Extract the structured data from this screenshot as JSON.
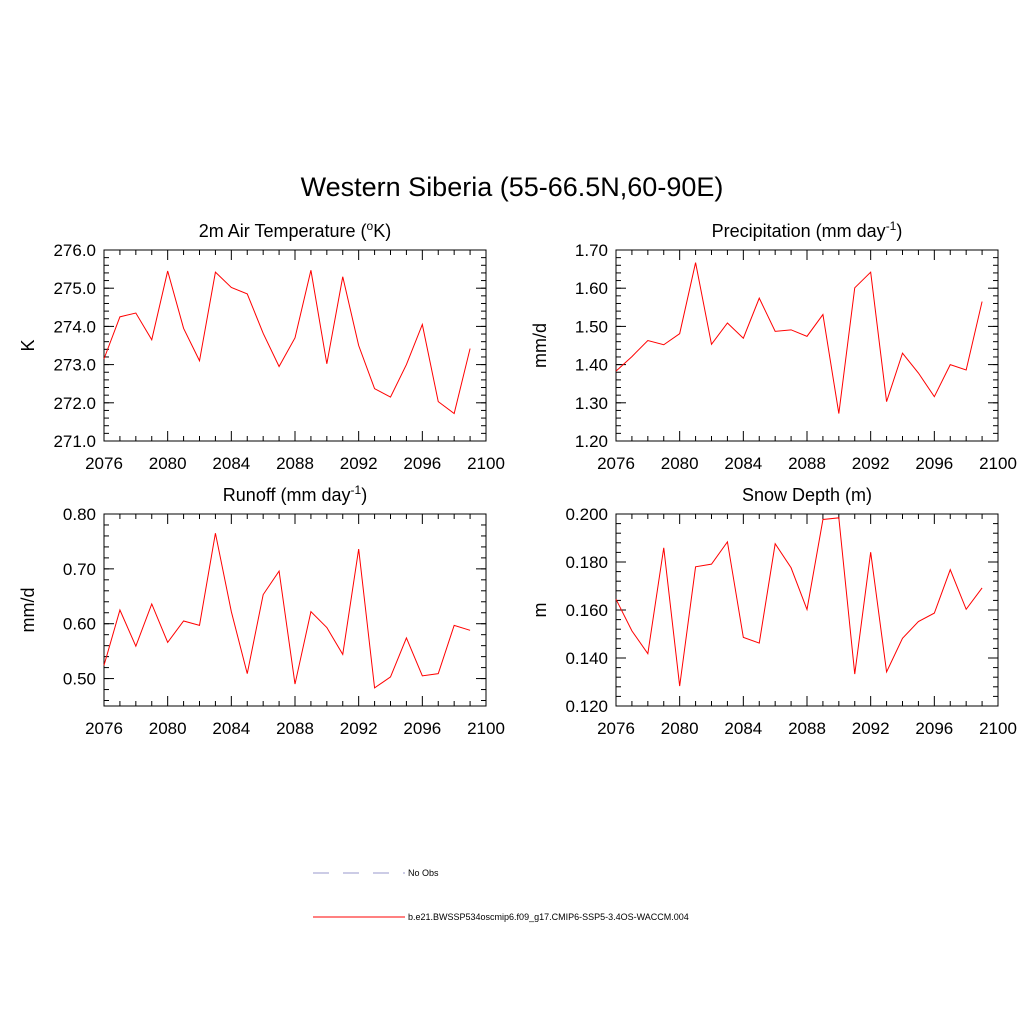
{
  "figure": {
    "title": "Western Siberia (55-66.5N,60-90E)"
  },
  "chart_data": [
    {
      "type": "line",
      "title": "2m Air Temperature (",
      "title_sup": "o",
      "title_end": "K)",
      "ylabel": "K",
      "xlim": [
        2076,
        2100
      ],
      "ylim": [
        271.0,
        276.0
      ],
      "xticks": [
        2076,
        2080,
        2084,
        2088,
        2092,
        2096,
        2100
      ],
      "yticks": [
        271.0,
        272.0,
        273.0,
        274.0,
        275.0,
        276.0
      ],
      "ytick_decimals": 1,
      "x": [
        2076,
        2077,
        2078,
        2079,
        2080,
        2081,
        2082,
        2083,
        2084,
        2085,
        2086,
        2087,
        2088,
        2089,
        2090,
        2091,
        2092,
        2093,
        2094,
        2095,
        2096,
        2097,
        2098,
        2099
      ],
      "series": [
        {
          "name": "b.e21.BWSSP534oscmip6.f09_g17.CMIP6-SSP5-3.4OS-WACCM.004",
          "values": [
            273.15,
            274.25,
            274.35,
            273.65,
            275.45,
            273.95,
            273.1,
            275.42,
            275.02,
            274.85,
            273.82,
            272.95,
            273.7,
            275.47,
            273.02,
            275.3,
            273.5,
            272.37,
            272.15,
            273.0,
            274.05,
            272.03,
            271.72,
            273.42
          ]
        }
      ]
    },
    {
      "type": "line",
      "title": "Precipitation (mm day",
      "title_sup": "-1",
      "title_end": ")",
      "ylabel": "mm/d",
      "xlim": [
        2076,
        2100
      ],
      "ylim": [
        1.2,
        1.7
      ],
      "xticks": [
        2076,
        2080,
        2084,
        2088,
        2092,
        2096,
        2100
      ],
      "yticks": [
        1.2,
        1.3,
        1.4,
        1.5,
        1.6,
        1.7
      ],
      "ytick_decimals": 2,
      "x": [
        2076,
        2077,
        2078,
        2079,
        2080,
        2081,
        2082,
        2083,
        2084,
        2085,
        2086,
        2087,
        2088,
        2089,
        2090,
        2091,
        2092,
        2093,
        2094,
        2095,
        2096,
        2097,
        2098,
        2099
      ],
      "series": [
        {
          "name": "b.e21.BWSSP534oscmip6.f09_g17.CMIP6-SSP5-3.4OS-WACCM.004",
          "values": [
            1.383,
            1.421,
            1.463,
            1.452,
            1.481,
            1.667,
            1.453,
            1.509,
            1.469,
            1.574,
            1.487,
            1.491,
            1.474,
            1.531,
            1.272,
            1.601,
            1.642,
            1.303,
            1.43,
            1.378,
            1.316,
            1.4,
            1.386,
            1.565
          ]
        }
      ]
    },
    {
      "type": "line",
      "title": "Runoff (mm day",
      "title_sup": "-1",
      "title_end": ")",
      "ylabel": "mm/d",
      "xlim": [
        2076,
        2100
      ],
      "ylim": [
        0.45,
        0.8
      ],
      "xticks": [
        2076,
        2080,
        2084,
        2088,
        2092,
        2096,
        2100
      ],
      "yticks": [
        0.5,
        0.6,
        0.7,
        0.8
      ],
      "ytick_decimals": 2,
      "x": [
        2076,
        2077,
        2078,
        2079,
        2080,
        2081,
        2082,
        2083,
        2084,
        2085,
        2086,
        2087,
        2088,
        2089,
        2090,
        2091,
        2092,
        2093,
        2094,
        2095,
        2096,
        2097,
        2098,
        2099
      ],
      "series": [
        {
          "name": "b.e21.BWSSP534oscmip6.f09_g17.CMIP6-SSP5-3.4OS-WACCM.004",
          "values": [
            0.524,
            0.625,
            0.559,
            0.636,
            0.566,
            0.605,
            0.597,
            0.765,
            0.622,
            0.509,
            0.653,
            0.696,
            0.49,
            0.622,
            0.593,
            0.544,
            0.736,
            0.483,
            0.503,
            0.574,
            0.505,
            0.509,
            0.597,
            0.588
          ]
        }
      ]
    },
    {
      "type": "line",
      "title": "Snow Depth (m)",
      "title_sup": "",
      "title_end": "",
      "ylabel": "m",
      "xlim": [
        2076,
        2100
      ],
      "ylim": [
        0.12,
        0.2
      ],
      "xticks": [
        2076,
        2080,
        2084,
        2088,
        2092,
        2096,
        2100
      ],
      "yticks": [
        0.12,
        0.14,
        0.16,
        0.18,
        0.2
      ],
      "ytick_decimals": 3,
      "x": [
        2076,
        2077,
        2078,
        2079,
        2080,
        2081,
        2082,
        2083,
        2084,
        2085,
        2086,
        2087,
        2088,
        2089,
        2090,
        2091,
        2092,
        2093,
        2094,
        2095,
        2096,
        2097,
        2098,
        2099
      ],
      "series": [
        {
          "name": "b.e21.BWSSP534oscmip6.f09_g17.CMIP6-SSP5-3.4OS-WACCM.004",
          "values": [
            0.1645,
            0.1513,
            0.1418,
            0.1859,
            0.1283,
            0.178,
            0.1791,
            0.1884,
            0.1486,
            0.1462,
            0.1876,
            0.1776,
            0.1602,
            0.1977,
            0.1984,
            0.1333,
            0.1841,
            0.1342,
            0.1482,
            0.1552,
            0.1587,
            0.1768,
            0.1603,
            0.1692
          ]
        }
      ]
    }
  ],
  "legend": {
    "items": [
      {
        "label": "No Obs",
        "color": "#9999cc",
        "style": "dashed"
      },
      {
        "label": "b.e21.BWSSP534oscmip6.f09_g17.CMIP6-SSP5-3.4OS-WACCM.004",
        "color": "#ff0000",
        "style": "solid"
      }
    ]
  },
  "colors": {
    "line": "#ff0000",
    "axis": "#000000"
  }
}
